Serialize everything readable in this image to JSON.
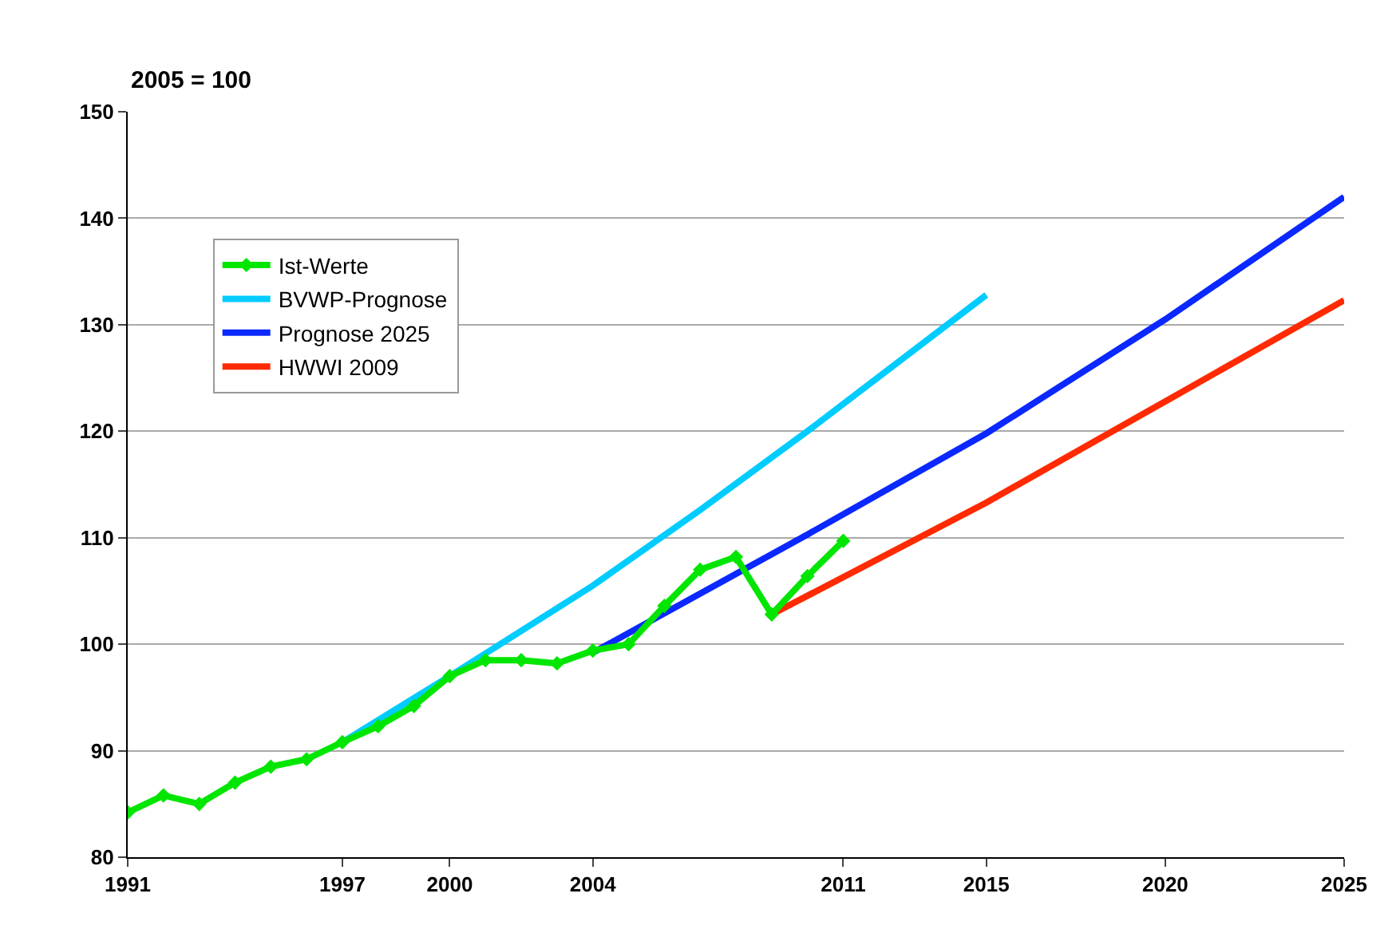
{
  "chart_data": {
    "type": "line",
    "ylabel": "2005 = 100",
    "xlim": [
      1991,
      2025
    ],
    "xticks": [
      1991,
      1997,
      2000,
      2004,
      2011,
      2015,
      2020,
      2025
    ],
    "ylim": [
      80,
      150
    ],
    "yticks": [
      80,
      90,
      100,
      110,
      120,
      130,
      140,
      150
    ],
    "grid": "y",
    "legend": "top left",
    "series": [
      {
        "name": "Ist-Werte",
        "color": "#00e600",
        "marker": "diamond",
        "x": [
          1991,
          1992,
          1993,
          1994,
          1995,
          1996,
          1997,
          1998,
          1999,
          2000,
          2001,
          2002,
          2003,
          2004,
          2005,
          2006,
          2007,
          2008,
          2009,
          2010,
          2011
        ],
        "values": [
          84.2,
          85.8,
          85.0,
          87.0,
          88.5,
          89.2,
          90.8,
          92.3,
          94.2,
          97.0,
          98.5,
          98.5,
          98.2,
          99.4,
          100.0,
          103.6,
          107.0,
          108.2,
          102.8,
          106.4,
          109.7
        ]
      },
      {
        "name": "BVWP-Prognose",
        "color": "#00ccff",
        "x": [
          1997,
          2000,
          2004,
          2007,
          2010,
          2015
        ],
        "values": [
          90.8,
          97.0,
          105.5,
          112.6,
          120.0,
          132.8
        ]
      },
      {
        "name": "Prognose 2025",
        "color": "#0a28ff",
        "x": [
          2004,
          2010,
          2015,
          2020,
          2025
        ],
        "values": [
          99.2,
          110.3,
          119.8,
          130.5,
          142.0
        ]
      },
      {
        "name": "HWWI 2009",
        "color": "#ff2a00",
        "x": [
          2009,
          2015,
          2020,
          2025
        ],
        "values": [
          102.8,
          113.3,
          122.8,
          132.3
        ]
      }
    ]
  }
}
